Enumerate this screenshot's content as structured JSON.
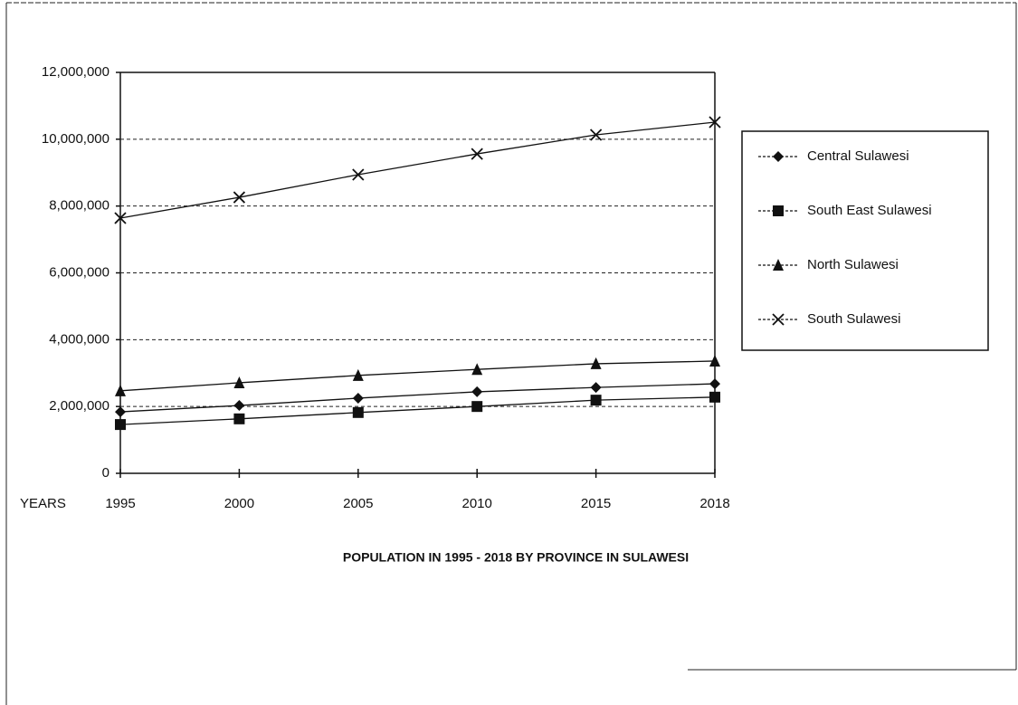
{
  "chart_data": {
    "type": "line",
    "title": "POPULATION IN 1995 - 2018 BY PROVINCE IN SULAWESI",
    "xlabel": "YEARS",
    "categories": [
      "1995",
      "2000",
      "2005",
      "2010",
      "2015",
      "2018"
    ],
    "series": [
      {
        "name": "Central Sulawesi",
        "color": "#111111",
        "marker": "diamond",
        "values": [
          1840000,
          2030000,
          2250000,
          2440000,
          2570000,
          2680000
        ]
      },
      {
        "name": "South East Sulawesi",
        "color": "#111111",
        "marker": "square",
        "values": [
          1460000,
          1630000,
          1820000,
          2000000,
          2190000,
          2280000
        ]
      },
      {
        "name": "North Sulawesi",
        "color": "#111111",
        "marker": "triangle",
        "values": [
          2470000,
          2710000,
          2930000,
          3110000,
          3280000,
          3360000
        ]
      },
      {
        "name": "South Sulawesi",
        "color": "#111111",
        "marker": "x",
        "values": [
          7640000,
          8260000,
          8940000,
          9560000,
          10130000,
          10510000
        ]
      }
    ],
    "ylim": [
      0,
      12000000
    ],
    "yticks": [
      0,
      {
        "value": 2000000,
        "label": "2,000,000"
      },
      {
        "value": 4000000,
        "label": "4,000,000"
      },
      {
        "value": 6000000,
        "label": "6,000,000"
      },
      {
        "value": 8000000,
        "label": "8,000,000"
      },
      {
        "value": 10000000,
        "label": "10,000,000"
      },
      {
        "value": 12000000,
        "label": "12,000,000"
      }
    ],
    "grid": true,
    "legend": "right"
  }
}
